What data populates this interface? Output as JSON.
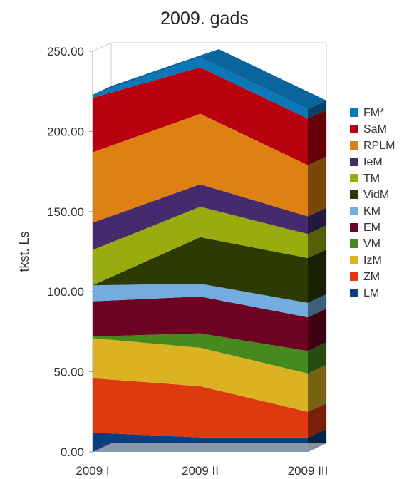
{
  "chart_data": {
    "type": "area",
    "stacked": true,
    "title": "2009. gads",
    "xlabel": "",
    "ylabel": "tkst. Ls",
    "ylim": [
      0,
      250
    ],
    "yticks": [
      "0.00",
      "50.00",
      "100.00",
      "150.00",
      "200.00",
      "250.00"
    ],
    "categories": [
      "2009 I",
      "2009 II",
      "2009 III"
    ],
    "legend_position": "right",
    "series": [
      {
        "name": "LM",
        "color": "#0b3e7e",
        "values": [
          12,
          9,
          9
        ]
      },
      {
        "name": "ZM",
        "color": "#dd3a10",
        "values": [
          34,
          32,
          16
        ]
      },
      {
        "name": "IzM",
        "color": "#dbb322",
        "values": [
          25,
          24,
          24
        ]
      },
      {
        "name": "VM",
        "color": "#468a1e",
        "values": [
          1,
          9,
          14
        ]
      },
      {
        "name": "EM",
        "color": "#6e0222",
        "values": [
          22,
          23,
          21
        ]
      },
      {
        "name": "KM",
        "color": "#73addf",
        "values": [
          10,
          8,
          9
        ]
      },
      {
        "name": "VidM",
        "color": "#2c3a03",
        "values": [
          0,
          29,
          28
        ]
      },
      {
        "name": "TM",
        "color": "#98ad0d",
        "values": [
          22,
          19,
          15
        ]
      },
      {
        "name": "IeM",
        "color": "#452a6d",
        "values": [
          17,
          14,
          11
        ]
      },
      {
        "name": "RPLM",
        "color": "#de8012",
        "values": [
          44,
          44,
          32
        ]
      },
      {
        "name": "SaM",
        "color": "#b8000e",
        "values": [
          34,
          29,
          29
        ]
      },
      {
        "name": "FM*",
        "color": "#0a77b6",
        "values": [
          2,
          6,
          6
        ]
      }
    ]
  }
}
